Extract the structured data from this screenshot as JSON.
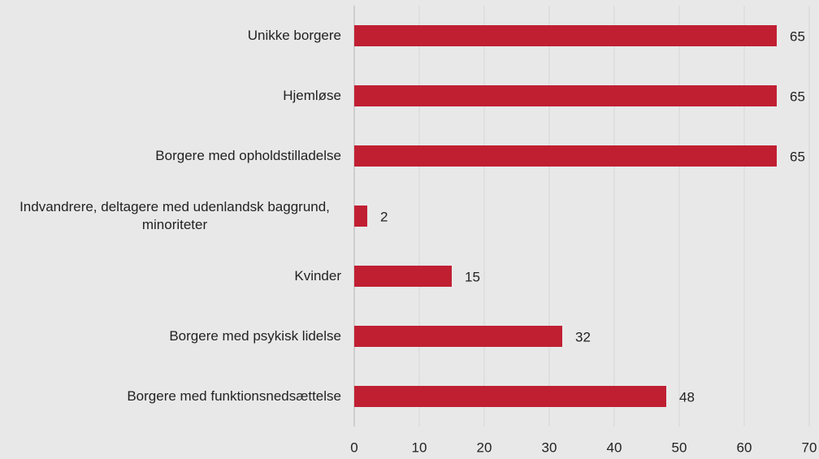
{
  "chart_data": {
    "type": "bar",
    "orientation": "horizontal",
    "categories": [
      "Unikke borgere",
      "Hjemløse",
      "Borgere med opholdstilladelse",
      "Indvandrere, deltagere med udenlandsk baggrund, minoriteter",
      "Kvinder",
      "Borgere med psykisk lidelse",
      "Borgere med funktionsnedsættelse"
    ],
    "values": [
      65,
      65,
      65,
      2,
      15,
      32,
      48
    ],
    "color": "#c01f32",
    "xlim": [
      0,
      70
    ],
    "xticks": [
      0,
      10,
      20,
      30,
      40,
      50,
      60,
      70
    ],
    "grid": true
  }
}
